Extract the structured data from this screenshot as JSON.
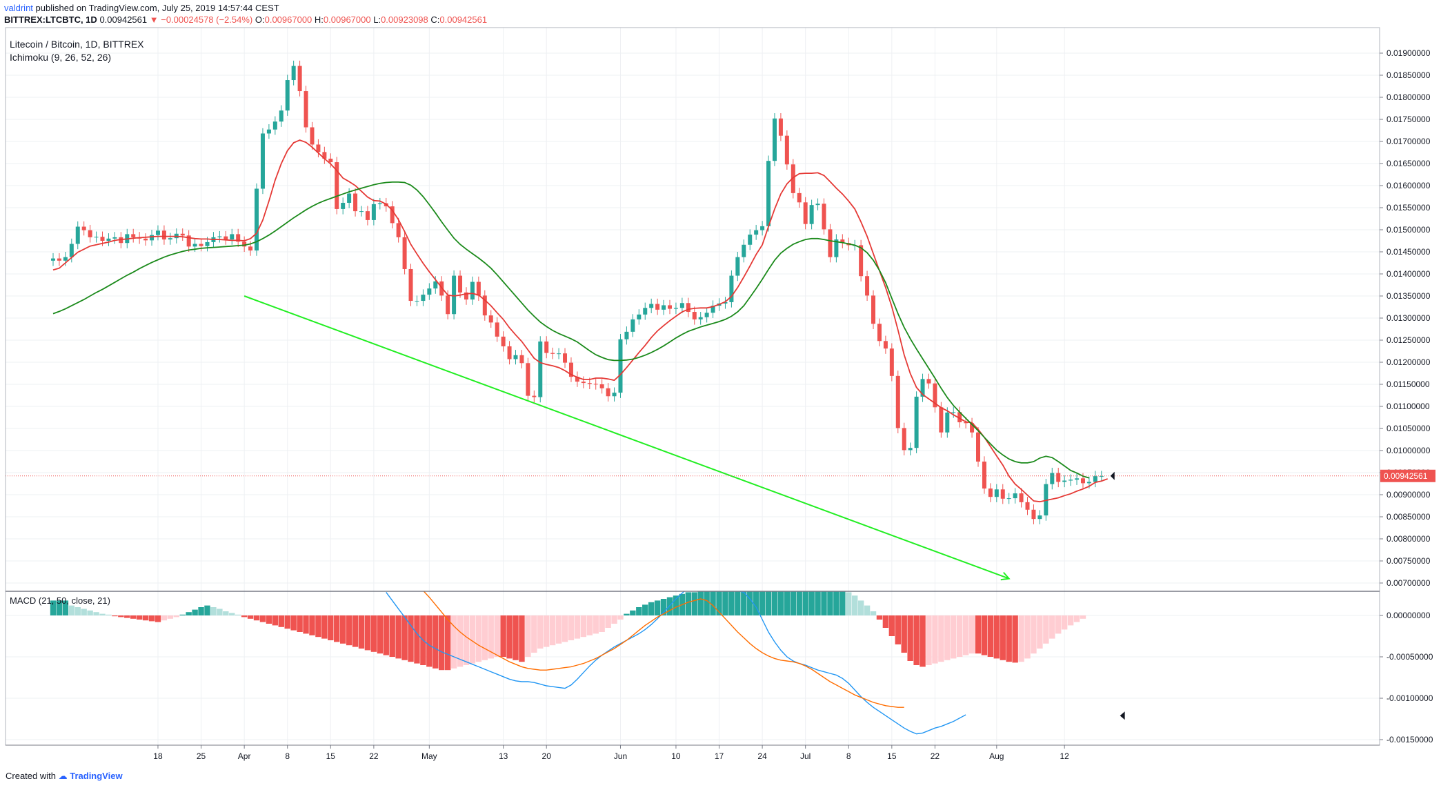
{
  "header": {
    "author": "valdrint",
    "published": "published on TradingView.com, July 25, 2019 14:57:44 CEST",
    "symbol": "BITTREX:LTCBTC, 1D",
    "last": "0.00942561",
    "change_arrow": "▼",
    "change": "−0.00024578 (−2.54%)",
    "open_label": "O:",
    "open": "0.00967000",
    "high_label": "H:",
    "high": "0.00967000",
    "low_label": "L:",
    "low": "0.00923098",
    "close_label": "C:",
    "close": "0.00942561"
  },
  "legend": {
    "title": "Litecoin / Bitcoin, 1D, BITTREX",
    "indicator": "Ichimoku (9, 26, 52, 26)"
  },
  "macd_legend": "MACD (21, 50, close, 21)",
  "footer": {
    "prefix": "Created with",
    "brand": "TradingView"
  },
  "colors": {
    "up": "#26a69a",
    "down": "#ef5350",
    "tenkan": "#e53935",
    "kijun": "#1b8a1b",
    "trend": "#22ee22",
    "macd": "#2196f3",
    "signal": "#ff6d00",
    "hist_up_strong": "#26a69a",
    "hist_up_weak": "#b2dfdb",
    "hist_down_strong": "#ef5350",
    "hist_down_weak": "#ffcdd2"
  },
  "chart_data": {
    "type": "candlestick",
    "ylim": [
      0.00685,
      0.0193
    ],
    "y_ticks": [
      "0.00700000",
      "0.00750000",
      "0.00800000",
      "0.00850000",
      "0.00900000",
      "0.00950000",
      "0.01000000",
      "0.01050000",
      "0.01100000",
      "0.01150000",
      "0.01200000",
      "0.01250000",
      "0.01300000",
      "0.01350000",
      "0.01400000",
      "0.01450000",
      "0.01500000",
      "0.01550000",
      "0.01600000",
      "0.01650000",
      "0.01700000",
      "0.01750000",
      "0.01800000",
      "0.01850000",
      "0.01900000"
    ],
    "x_ticks": [
      {
        "label": "18",
        "day": 17
      },
      {
        "label": "25",
        "day": 24
      },
      {
        "label": "Apr",
        "day": 31
      },
      {
        "label": "8",
        "day": 38
      },
      {
        "label": "15",
        "day": 45
      },
      {
        "label": "22",
        "day": 52
      },
      {
        "label": "May",
        "day": 61
      },
      {
        "label": "13",
        "day": 73
      },
      {
        "label": "20",
        "day": 80
      },
      {
        "label": "Jun",
        "day": 92
      },
      {
        "label": "10",
        "day": 101
      },
      {
        "label": "17",
        "day": 108
      },
      {
        "label": "24",
        "day": 115
      },
      {
        "label": "Jul",
        "day": 122
      },
      {
        "label": "8",
        "day": 129
      },
      {
        "label": "15",
        "day": 136
      },
      {
        "label": "22",
        "day": 143
      },
      {
        "label": "Aug",
        "day": 153
      },
      {
        "label": "12",
        "day": 164
      }
    ],
    "current_price_label": "0.00942561",
    "current_price": 0.00942561,
    "close": [
      0.01435,
      0.0143,
      0.01438,
      0.01468,
      0.01507,
      0.01499,
      0.01483,
      0.01484,
      0.01475,
      0.0148,
      0.01483,
      0.0147,
      0.0149,
      0.01483,
      0.0148,
      0.01476,
      0.01488,
      0.01498,
      0.01478,
      0.01481,
      0.01491,
      0.01487,
      0.01462,
      0.01468,
      0.01463,
      0.01472,
      0.01483,
      0.01485,
      0.01478,
      0.0149,
      0.01473,
      0.01462,
      0.01453,
      0.01593,
      0.01718,
      0.01727,
      0.01745,
      0.0177,
      0.01839,
      0.01871,
      0.01814,
      0.01732,
      0.01693,
      0.01676,
      0.01661,
      0.01653,
      0.01547,
      0.01561,
      0.01582,
      0.01542,
      0.01542,
      0.01522,
      0.01558,
      0.0156,
      0.01553,
      0.01515,
      0.01483,
      0.01411,
      0.01339,
      0.01339,
      0.01353,
      0.01367,
      0.01383,
      0.01351,
      0.01309,
      0.01396,
      0.01358,
      0.01342,
      0.01382,
      0.01351,
      0.01306,
      0.0129,
      0.01258,
      0.01236,
      0.01207,
      0.01216,
      0.01198,
      0.01124,
      0.01121,
      0.01247,
      0.01221,
      0.01219,
      0.0122,
      0.01199,
      0.01167,
      0.01156,
      0.01153,
      0.01151,
      0.0115,
      0.01141,
      0.01123,
      0.01131,
      0.01252,
      0.01269,
      0.01297,
      0.01308,
      0.01323,
      0.01332,
      0.01319,
      0.01329,
      0.01321,
      0.01323,
      0.01334,
      0.01314,
      0.01297,
      0.01302,
      0.01312,
      0.01328,
      0.01333,
      0.01336,
      0.01396,
      0.01438,
      0.01466,
      0.01489,
      0.01499,
      0.01508,
      0.01656,
      0.01752,
      0.01713,
      0.01648,
      0.01583,
      0.01562,
      0.01513,
      0.01556,
      0.01559,
      0.01501,
      0.01438,
      0.01478,
      0.0147,
      0.01465,
      0.01465,
      0.01395,
      0.01351,
      0.01287,
      0.01248,
      0.01231,
      0.01169,
      0.01051,
      0.01001,
      0.01006,
      0.01122,
      0.01162,
      0.01152,
      0.01098,
      0.01041,
      0.01086,
      0.01087,
      0.01064,
      0.01062,
      0.01041,
      0.00975,
      0.00914,
      0.00895,
      0.00912,
      0.00891,
      0.00892,
      0.00903,
      0.00883,
      0.00866,
      0.00845,
      0.00853,
      0.00924,
      0.00949,
      0.00929,
      0.00932,
      0.00934,
      0.00937,
      0.00926,
      0.00929,
      0.00942,
      0.00942
    ],
    "series": [
      {
        "name": "",
        "comment": "Ichimoku Tenkan line (red), starts at day 0",
        "values": [
          0.01409,
          0.01413,
          0.01425,
          0.01437,
          0.01449,
          0.01456,
          0.01463,
          0.01466,
          0.01469,
          0.01472,
          0.01476,
          0.01478,
          0.01479,
          0.01481,
          0.01482,
          0.01483,
          0.01484,
          0.01485,
          0.01485,
          0.01485,
          0.01485,
          0.01484,
          0.01482,
          0.0148,
          0.01479,
          0.01479,
          0.01478,
          0.01478,
          0.01477,
          0.01476,
          0.01476,
          0.01475,
          0.0148,
          0.01492,
          0.01522,
          0.01565,
          0.01612,
          0.0165,
          0.01679,
          0.01697,
          0.01703,
          0.01698,
          0.01687,
          0.01674,
          0.01661,
          0.01649,
          0.01634,
          0.01617,
          0.01609,
          0.016,
          0.01587,
          0.01574,
          0.01566,
          0.01565,
          0.01558,
          0.01544,
          0.01523,
          0.01496,
          0.01467,
          0.01445,
          0.01424,
          0.01405,
          0.01387,
          0.01369,
          0.01352,
          0.0135,
          0.01352,
          0.01355,
          0.01356,
          0.01352,
          0.01341,
          0.01328,
          0.01312,
          0.01297,
          0.01278,
          0.01262,
          0.01247,
          0.01228,
          0.01209,
          0.01199,
          0.01195,
          0.01192,
          0.01188,
          0.01181,
          0.01172,
          0.01166,
          0.01161,
          0.01161,
          0.01164,
          0.01164,
          0.01162,
          0.01159,
          0.01172,
          0.01188,
          0.01205,
          0.01222,
          0.01238,
          0.01256,
          0.01271,
          0.01283,
          0.01294,
          0.01304,
          0.01314,
          0.0132,
          0.01322,
          0.01323,
          0.01323,
          0.01326,
          0.01331,
          0.01337,
          0.01349,
          0.01369,
          0.01393,
          0.01418,
          0.01444,
          0.01466,
          0.01507,
          0.01547,
          0.01581,
          0.01604,
          0.01618,
          0.01627,
          0.01628,
          0.01628,
          0.01629,
          0.01623,
          0.01609,
          0.01594,
          0.01581,
          0.01565,
          0.01547,
          0.01518,
          0.01485,
          0.01446,
          0.01407,
          0.01369,
          0.01326,
          0.01273,
          0.01217,
          0.01174,
          0.01143,
          0.01127,
          0.01117,
          0.01107,
          0.01097,
          0.0109,
          0.01081,
          0.01073,
          0.01065,
          0.01063,
          0.01048,
          0.0103,
          0.01009,
          0.00988,
          0.00967,
          0.00942,
          0.00924,
          0.00912,
          0.00899,
          0.00886,
          0.00884,
          0.00887,
          0.0089,
          0.00893,
          0.00898,
          0.00902,
          0.00908,
          0.00913,
          0.00919,
          0.00928,
          0.00931,
          0.00936
        ]
      },
      {
        "name": "",
        "comment": "Ichimoku Kijun line (green), starts at day 0",
        "values": [
          0.0131,
          0.01315,
          0.01321,
          0.01328,
          0.01335,
          0.01342,
          0.0135,
          0.01358,
          0.01365,
          0.01373,
          0.01381,
          0.01389,
          0.01397,
          0.01404,
          0.01412,
          0.01419,
          0.01426,
          0.01432,
          0.01438,
          0.01443,
          0.01447,
          0.01451,
          0.01454,
          0.01456,
          0.01458,
          0.01459,
          0.0146,
          0.01461,
          0.01462,
          0.01463,
          0.01464,
          0.01465,
          0.01468,
          0.01473,
          0.0148,
          0.01488,
          0.01497,
          0.01507,
          0.01517,
          0.01527,
          0.01536,
          0.01545,
          0.01553,
          0.0156,
          0.01566,
          0.01571,
          0.01576,
          0.01581,
          0.01586,
          0.0159,
          0.01594,
          0.01598,
          0.01602,
          0.01605,
          0.01607,
          0.01608,
          0.01608,
          0.01607,
          0.01601,
          0.0159,
          0.01575,
          0.01557,
          0.01538,
          0.01518,
          0.01499,
          0.01481,
          0.01467,
          0.01456,
          0.01446,
          0.01436,
          0.01425,
          0.01413,
          0.01398,
          0.01382,
          0.01366,
          0.0135,
          0.01334,
          0.01318,
          0.01304,
          0.01291,
          0.01281,
          0.01272,
          0.01265,
          0.01259,
          0.01253,
          0.01246,
          0.01236,
          0.01226,
          0.01217,
          0.01211,
          0.01206,
          0.01204,
          0.01204,
          0.01205,
          0.01207,
          0.01211,
          0.01216,
          0.01222,
          0.01229,
          0.01237,
          0.01246,
          0.01255,
          0.01263,
          0.0127,
          0.01275,
          0.0128,
          0.01284,
          0.01288,
          0.01292,
          0.01297,
          0.01304,
          0.01314,
          0.01328,
          0.01347,
          0.01367,
          0.01388,
          0.0141,
          0.01431,
          0.01447,
          0.01458,
          0.01467,
          0.01473,
          0.01478,
          0.0148,
          0.0148,
          0.01478,
          0.01475,
          0.01473,
          0.01471,
          0.01468,
          0.01465,
          0.01459,
          0.01448,
          0.01431,
          0.01408,
          0.0138,
          0.01345,
          0.0131,
          0.01279,
          0.01253,
          0.0123,
          0.01208,
          0.01186,
          0.01164,
          0.01141,
          0.0112,
          0.01102,
          0.01087,
          0.01073,
          0.01059,
          0.01045,
          0.0103,
          0.01015,
          0.01001,
          0.0099,
          0.00981,
          0.00975,
          0.00972,
          0.00972,
          0.00975,
          0.00983,
          0.00987,
          0.00984,
          0.00975,
          0.00965,
          0.00955,
          0.00949,
          0.00942,
          0.00938
        ]
      }
    ],
    "trendline": {
      "from": {
        "day": 31,
        "value": 0.0135
      },
      "to": {
        "day": 155,
        "value": 0.0071
      }
    },
    "macd": {
      "ylim": [
        -0.00165,
        0.0003
      ],
      "y_ticks": [
        "0.00000000",
        "-0.00050000",
        "-0.00100000",
        "-0.00150000"
      ],
      "histogram": [
        0.00018,
        0.00018,
        0.00018,
        0.00012,
        0.0001,
        8e-05,
        6e-05,
        4e-05,
        2e-05,
        1e-05,
        -1e-05,
        -2e-05,
        -3e-05,
        -4e-05,
        -5e-05,
        -6e-05,
        -7e-05,
        -8e-05,
        -6e-05,
        -4e-05,
        -2e-05,
        1e-05,
        4e-05,
        7e-05,
        0.0001,
        0.00012,
        0.0001,
        8e-05,
        5e-05,
        3e-05,
        1e-05,
        -2e-05,
        -4e-05,
        -6e-05,
        -8e-05,
        -0.0001,
        -0.00012,
        -0.00014,
        -0.00016,
        -0.00018,
        -0.0002,
        -0.00022,
        -0.00024,
        -0.00026,
        -0.00028,
        -0.0003,
        -0.00032,
        -0.00034,
        -0.00036,
        -0.00038,
        -0.0004,
        -0.00042,
        -0.00044,
        -0.00046,
        -0.00048,
        -0.0005,
        -0.00052,
        -0.00054,
        -0.00056,
        -0.00058,
        -0.0006,
        -0.00062,
        -0.00064,
        -0.00066,
        -0.00066,
        -0.00064,
        -0.00062,
        -0.0006,
        -0.00058,
        -0.00056,
        -0.00054,
        -0.00052,
        -0.0005,
        -0.0005,
        -0.00052,
        -0.00054,
        -0.00056,
        -0.0005,
        -0.00045,
        -0.0004,
        -0.00038,
        -0.00036,
        -0.00034,
        -0.00032,
        -0.0003,
        -0.00028,
        -0.00026,
        -0.00024,
        -0.00022,
        -0.0002,
        -0.00015,
        -0.0001,
        -5e-05,
        2e-05,
        6e-05,
        0.0001,
        0.00013,
        0.00016,
        0.00018,
        0.0002,
        0.00022,
        0.00024,
        0.00026,
        0.00028,
        0.00028,
        0.0003,
        0.0003,
        0.0003,
        0.0003,
        0.0003,
        0.0003,
        0.0003,
        0.0003,
        0.0003,
        0.0003,
        0.0003,
        0.0003,
        0.0003,
        0.0003,
        0.0003,
        0.0003,
        0.0003,
        0.0003,
        0.0003,
        0.0003,
        0.0003,
        0.0003,
        0.0003,
        0.0003,
        0.00028,
        0.00024,
        0.00018,
        0.00012,
        5e-05,
        -5e-05,
        -0.00015,
        -0.00025,
        -0.00035,
        -0.00045,
        -0.00055,
        -0.0006,
        -0.00062,
        -0.0006,
        -0.00058,
        -0.00056,
        -0.00054,
        -0.00052,
        -0.0005,
        -0.00048,
        -0.00046,
        -0.00046,
        -0.00048,
        -0.0005,
        -0.00052,
        -0.00054,
        -0.00056,
        -0.00057,
        -0.00056,
        -0.00052,
        -0.00046,
        -0.0004,
        -0.00034,
        -0.00028,
        -0.00022,
        -0.00017,
        -0.00012,
        -8e-05,
        -4e-05
      ],
      "macd_line_start_day": 54,
      "macd_line": [
        0.00028,
        0.00018,
        8e-05,
        -2e-05,
        -0.00012,
        -0.00022,
        -0.0003,
        -0.00036,
        -0.0004,
        -0.00044,
        -0.00047,
        -0.0005,
        -0.00053,
        -0.00056,
        -0.00059,
        -0.00062,
        -0.00065,
        -0.00068,
        -0.00071,
        -0.00074,
        -0.00077,
        -0.00079,
        -0.0008,
        -0.0008,
        -0.00081,
        -0.00083,
        -0.00085,
        -0.00086,
        -0.00087,
        -0.00088,
        -0.00084,
        -0.00077,
        -0.00069,
        -0.00061,
        -0.00054,
        -0.00048,
        -0.00043,
        -0.00038,
        -0.00034,
        -0.0003,
        -0.00026,
        -0.00022,
        -0.00017,
        -0.00011,
        -4e-05,
        4e-05,
        0.00012,
        0.0002,
        0.00027,
        0.00033,
        0.00036,
        0.00037,
        0.00036,
        0.00034,
        0.00032,
        0.0003,
        0.0003,
        0.0003,
        0.00028,
        0.0002,
        0.0001,
        -5e-05,
        -0.0002,
        -0.00032,
        -0.00042,
        -0.0005,
        -0.00055,
        -0.00058,
        -0.0006,
        -0.00063,
        -0.00066,
        -0.00068,
        -0.0007,
        -0.00072,
        -0.00076,
        -0.00082,
        -0.0009,
        -0.00098,
        -0.00105,
        -0.00111,
        -0.00116,
        -0.00121,
        -0.00126,
        -0.00131,
        -0.00136,
        -0.0014,
        -0.00143,
        -0.00142,
        -0.00139,
        -0.00136,
        -0.00134,
        -0.00131,
        -0.00128,
        -0.00124,
        -0.0012
      ],
      "signal_line_start_day": 60,
      "signal_line": [
        0.0003,
        0.00022,
        0.00013,
        4e-05,
        -5e-05,
        -0.00013,
        -0.0002,
        -0.00026,
        -0.00031,
        -0.00036,
        -0.0004,
        -0.00044,
        -0.00048,
        -0.00052,
        -0.00056,
        -0.00059,
        -0.00062,
        -0.00064,
        -0.00065,
        -0.00066,
        -0.00066,
        -0.00065,
        -0.00064,
        -0.00063,
        -0.00062,
        -0.0006,
        -0.00058,
        -0.00055,
        -0.00052,
        -0.00048,
        -0.00044,
        -0.0004,
        -0.00035,
        -0.0003,
        -0.00024,
        -0.00018,
        -0.00012,
        -7e-05,
        -2e-05,
        2e-05,
        6e-05,
        0.0001,
        0.00013,
        0.00016,
        0.00018,
        0.0002,
        0.00018,
        0.00012,
        4e-05,
        -4e-05,
        -0.00012,
        -0.0002,
        -0.00027,
        -0.00034,
        -0.0004,
        -0.00045,
        -0.00049,
        -0.00052,
        -0.00054,
        -0.00055,
        -0.00056,
        -0.00058,
        -0.00061,
        -0.00065,
        -0.0007,
        -0.00075,
        -0.0008,
        -0.00084,
        -0.00088,
        -0.00092,
        -0.00096,
        -0.00099,
        -0.00102,
        -0.00105,
        -0.00107,
        -0.00109,
        -0.0011,
        -0.00111,
        -0.00111
      ]
    }
  }
}
